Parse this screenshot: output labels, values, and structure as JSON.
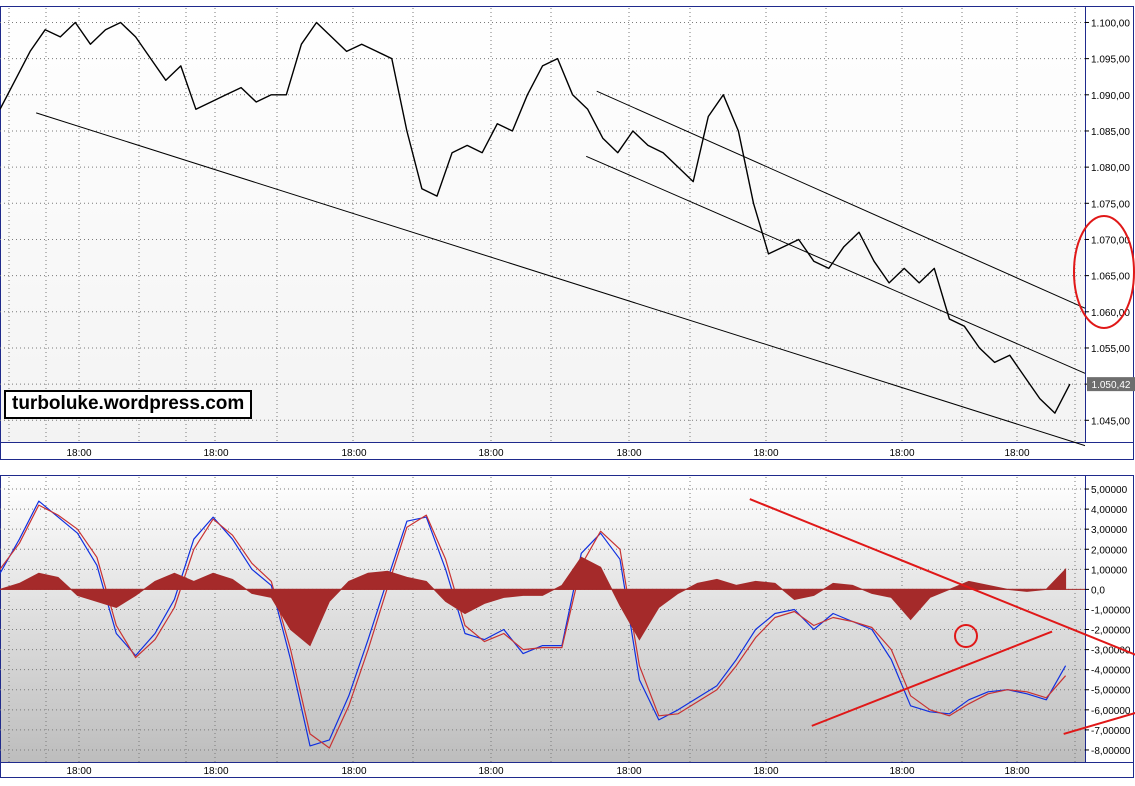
{
  "watermark": "turboluke.wordpress.com",
  "colors": {
    "frame": "#1f2a8c",
    "grid": "#7a7a7a",
    "price": "#000000",
    "macd_blue": "#1030e0",
    "macd_red": "#c83232",
    "histogram": "#a52a2a",
    "annotation": "#e01818",
    "last_price_bg": "#6e6e6e"
  },
  "chart_data": [
    {
      "type": "line",
      "series": [
        {
          "values": [
            1.088,
            1.092,
            1.096,
            1.099,
            1.098,
            1.1,
            1.097,
            1.099,
            1.1,
            1.098,
            1.095,
            1.092,
            1.094,
            1.088,
            1.089,
            1.09,
            1.091,
            1.089,
            1.09,
            1.09,
            1.097,
            1.1,
            1.098,
            1.096,
            1.097,
            1.096,
            1.095,
            1.085,
            1.077,
            1.076,
            1.082,
            1.083,
            1.082,
            1.086,
            1.085,
            1.09,
            1.094,
            1.095,
            1.09,
            1.088,
            1.084,
            1.082,
            1.085,
            1.083,
            1.082,
            1.08,
            1.078,
            1.087,
            1.09,
            1.085,
            1.075,
            1.068,
            1.069,
            1.07,
            1.067,
            1.066,
            1.069,
            1.071,
            1.067,
            1.064,
            1.066,
            1.064,
            1.066,
            1.059,
            1.058,
            1.055,
            1.053,
            1.054,
            1.051,
            1.048,
            1.046,
            1.05
          ]
        }
      ],
      "x_tick_labels": [
        "18:00",
        "18:00",
        "18:00",
        "18:00",
        "18:00",
        "18:00",
        "18:00",
        "18:00",
        "18:00"
      ],
      "y_tick_labels": [
        "1.100,00",
        "1.095,00",
        "1.090,00",
        "1.085,00",
        "1.080,00",
        "1.075,00",
        "1.070,00",
        "1.065,00",
        "1.060,00",
        "1.055,00",
        "1.050,00",
        "1.045,00"
      ],
      "ylim": [
        1.042,
        1.102
      ],
      "last_value_label": "1.050,42",
      "grid": true,
      "trendlines": [
        {
          "from": [
            2.4,
            1.0875
          ],
          "to": [
            72,
            1.0415
          ]
        },
        {
          "from": [
            39.6,
            1.0905
          ],
          "to": [
            72,
            1.0605
          ]
        },
        {
          "from": [
            38.9,
            1.0815
          ],
          "to": [
            72,
            1.0515
          ]
        }
      ]
    },
    {
      "type": "line",
      "series": [
        {
          "values": [
            0.8,
            2.5,
            4.4,
            3.6,
            2.8,
            1.2,
            -2.2,
            -3.3,
            -2.2,
            -0.5,
            2.5,
            3.6,
            2.5,
            1.0,
            0.2,
            -3.5,
            -7.8,
            -7.5,
            -5.3,
            -2.5,
            0.5,
            3.4,
            3.6,
            1.0,
            -2.2,
            -2.5,
            -2.0,
            -3.2,
            -2.8,
            -2.8,
            1.8,
            2.8,
            1.5,
            -4.5,
            -6.5,
            -6.0,
            -5.4,
            -4.8,
            -3.5,
            -2.0,
            -1.2,
            -1.0,
            -2.0,
            -1.2,
            -1.6,
            -2.0,
            -3.5,
            -5.8,
            -6.1,
            -6.2,
            -5.5,
            -5.1,
            -5.0,
            -5.2,
            -5.5,
            -3.8
          ],
          "color": "#1030e0"
        },
        {
          "values": [
            1.0,
            2.3,
            4.2,
            3.7,
            3.0,
            1.6,
            -1.8,
            -3.4,
            -2.5,
            -0.9,
            2.0,
            3.5,
            2.7,
            1.3,
            0.4,
            -3.0,
            -7.2,
            -7.9,
            -5.8,
            -3.0,
            0.1,
            3.1,
            3.7,
            1.5,
            -1.8,
            -2.6,
            -2.2,
            -3.0,
            -2.9,
            -2.9,
            1.2,
            2.9,
            2.0,
            -3.8,
            -6.3,
            -6.2,
            -5.6,
            -5.0,
            -3.8,
            -2.4,
            -1.4,
            -1.1,
            -1.8,
            -1.4,
            -1.6,
            -1.9,
            -3.0,
            -5.3,
            -6.0,
            -6.3,
            -5.7,
            -5.2,
            -5.0,
            -5.1,
            -5.4,
            -4.3
          ],
          "color": "#c83232"
        },
        {
          "values": [
            0.0,
            0.3,
            0.8,
            0.6,
            -0.3,
            -0.6,
            -0.9,
            -0.3,
            0.4,
            0.8,
            0.4,
            0.8,
            0.5,
            -0.2,
            -0.4,
            -2.0,
            -2.8,
            -0.6,
            0.4,
            0.8,
            0.9,
            0.6,
            0.4,
            -0.6,
            -1.2,
            -0.7,
            -0.4,
            -0.3,
            -0.3,
            0.2,
            1.6,
            1.1,
            -0.8,
            -2.5,
            -0.9,
            -0.2,
            0.3,
            0.5,
            0.2,
            0.4,
            0.3,
            -0.5,
            -0.3,
            0.3,
            0.2,
            -0.2,
            -0.4,
            -1.5,
            -0.4,
            0.0,
            0.4,
            0.2,
            0.0,
            -0.1,
            0.0,
            1.0
          ],
          "color": "#a52a2a",
          "style": "histogram"
        }
      ],
      "x_tick_labels": [
        "18:00",
        "18:00",
        "18:00",
        "18:00",
        "18:00",
        "18:00",
        "18:00",
        "18:00",
        "18:00"
      ],
      "y_tick_labels": [
        "5,00000",
        "4,00000",
        "3,00000",
        "2,00000",
        "1,00000",
        "0,0",
        "-1,00000",
        "-2,00000",
        "-3,00000",
        "-4,00000",
        "-5,00000",
        "-6,00000",
        "-7,00000",
        "-8,00000"
      ],
      "ylim": [
        -8.6,
        5.6
      ],
      "grid": true,
      "trendlines": [
        {
          "from": [
            38.7,
            4.5
          ],
          "to": [
            60,
            -3.8
          ]
        },
        {
          "from": [
            41.9,
            -6.8
          ],
          "to": [
            54.3,
            -2.1
          ]
        },
        {
          "from": [
            54.9,
            -7.2
          ],
          "to": [
            62.7,
            -5.0
          ]
        }
      ]
    }
  ]
}
